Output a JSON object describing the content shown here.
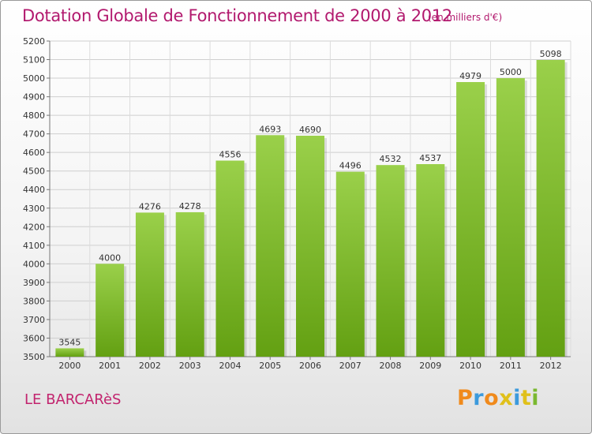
{
  "chart_data": {
    "type": "bar",
    "title": "Dotation Globale de Fonctionnement de 2000 à 2012",
    "unit_note": "(en milliers d'€)",
    "categories": [
      "2000",
      "2001",
      "2002",
      "2003",
      "2004",
      "2005",
      "2006",
      "2007",
      "2008",
      "2009",
      "2010",
      "2011",
      "2012"
    ],
    "values": [
      3545,
      4000,
      4276,
      4278,
      4556,
      4693,
      4690,
      4496,
      4532,
      4537,
      4979,
      5000,
      5098
    ],
    "ylim": [
      3500,
      5200
    ],
    "yticks": [
      3500,
      3600,
      3700,
      3800,
      3900,
      4000,
      4100,
      4200,
      4300,
      4400,
      4500,
      4600,
      4700,
      4800,
      4900,
      5000,
      5100,
      5200
    ],
    "grid": true,
    "bar_color_top": "#9ad04a",
    "bar_color_bottom": "#63a012"
  },
  "commune": "LE BARCARèS",
  "brand": {
    "letters": [
      "P",
      "r",
      "o",
      "x",
      "i",
      "t",
      "i"
    ],
    "colors": [
      "#f08a1c",
      "#3c9adc",
      "#f08a1c",
      "#e0c01a",
      "#3c9adc",
      "#e0c01a",
      "#7ab830"
    ]
  }
}
